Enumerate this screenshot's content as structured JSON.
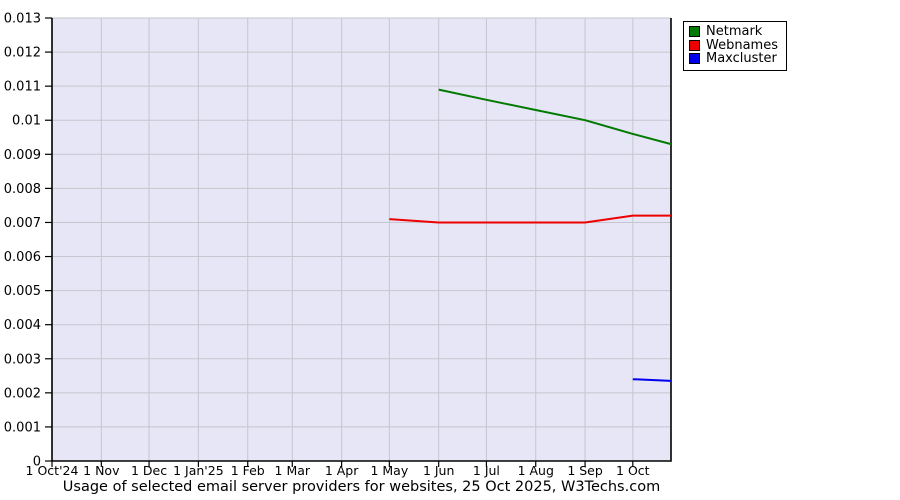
{
  "caption": "Usage of selected email server providers for websites, 25 Oct 2025, W3Techs.com",
  "colors": {
    "plot_background": "#e6e6f6",
    "grid": "#c6c6ce",
    "axis": "#000000",
    "netmark": "#007a00",
    "webnames": "#ee0000",
    "maxcluster": "#0000ee"
  },
  "chart_data": {
    "type": "line",
    "title": "Usage of selected email server providers for websites, 25 Oct 2025, W3Techs.com",
    "xlabel": "",
    "ylabel": "",
    "ylim": [
      0,
      0.013
    ],
    "x_unit_days_since_1_oct_2024": true,
    "x_range_days": [
      0,
      389
    ],
    "grid": true,
    "legend_position": "top-right",
    "y_ticks": [
      {
        "v": 0,
        "label": "0"
      },
      {
        "v": 0.001,
        "label": "0.001"
      },
      {
        "v": 0.002,
        "label": "0.002"
      },
      {
        "v": 0.003,
        "label": "0.003"
      },
      {
        "v": 0.004,
        "label": "0.004"
      },
      {
        "v": 0.005,
        "label": "0.005"
      },
      {
        "v": 0.006,
        "label": "0.006"
      },
      {
        "v": 0.007,
        "label": "0.007"
      },
      {
        "v": 0.008,
        "label": "0.008"
      },
      {
        "v": 0.009,
        "label": "0.009"
      },
      {
        "v": 0.01,
        "label": "0.01"
      },
      {
        "v": 0.011,
        "label": "0.011"
      },
      {
        "v": 0.012,
        "label": "0.012"
      },
      {
        "v": 0.013,
        "label": "0.013"
      }
    ],
    "x_ticks": [
      {
        "day": 0,
        "label": "1 Oct'24"
      },
      {
        "day": 31,
        "label": "1 Nov"
      },
      {
        "day": 61,
        "label": "1 Dec"
      },
      {
        "day": 92,
        "label": "1 Jan'25"
      },
      {
        "day": 123,
        "label": "1 Feb"
      },
      {
        "day": 151,
        "label": "1 Mar"
      },
      {
        "day": 182,
        "label": "1 Apr"
      },
      {
        "day": 212,
        "label": "1 May"
      },
      {
        "day": 243,
        "label": "1 Jun"
      },
      {
        "day": 273,
        "label": "1 Jul"
      },
      {
        "day": 304,
        "label": "1 Aug"
      },
      {
        "day": 335,
        "label": "1 Sep"
      },
      {
        "day": 365,
        "label": "1 Oct"
      }
    ],
    "series": [
      {
        "name": "Netmark",
        "color": "#007a00",
        "points": [
          {
            "day": 243,
            "date": "1 Jun 2025",
            "value": 0.0109
          },
          {
            "day": 273,
            "date": "1 Jul 2025",
            "value": 0.0106
          },
          {
            "day": 304,
            "date": "1 Aug 2025",
            "value": 0.0103
          },
          {
            "day": 335,
            "date": "1 Sep 2025",
            "value": 0.01
          },
          {
            "day": 365,
            "date": "1 Oct 2025",
            "value": 0.0096
          },
          {
            "day": 389,
            "date": "25 Oct 2025",
            "value": 0.0093
          }
        ]
      },
      {
        "name": "Webnames",
        "color": "#ee0000",
        "points": [
          {
            "day": 212,
            "date": "1 May 2025",
            "value": 0.0071
          },
          {
            "day": 243,
            "date": "1 Jun 2025",
            "value": 0.007
          },
          {
            "day": 273,
            "date": "1 Jul 2025",
            "value": 0.007
          },
          {
            "day": 304,
            "date": "1 Aug 2025",
            "value": 0.007
          },
          {
            "day": 335,
            "date": "1 Sep 2025",
            "value": 0.007
          },
          {
            "day": 365,
            "date": "1 Oct 2025",
            "value": 0.0072
          },
          {
            "day": 389,
            "date": "25 Oct 2025",
            "value": 0.0072
          }
        ]
      },
      {
        "name": "Maxcluster",
        "color": "#0000ee",
        "points": [
          {
            "day": 365,
            "date": "1 Oct 2025",
            "value": 0.0024
          },
          {
            "day": 389,
            "date": "25 Oct 2025",
            "value": 0.00235
          }
        ]
      }
    ]
  },
  "legend": {
    "items": [
      {
        "label": "Netmark",
        "color": "#007a00"
      },
      {
        "label": "Webnames",
        "color": "#ee0000"
      },
      {
        "label": "Maxcluster",
        "color": "#0000ee"
      }
    ]
  }
}
